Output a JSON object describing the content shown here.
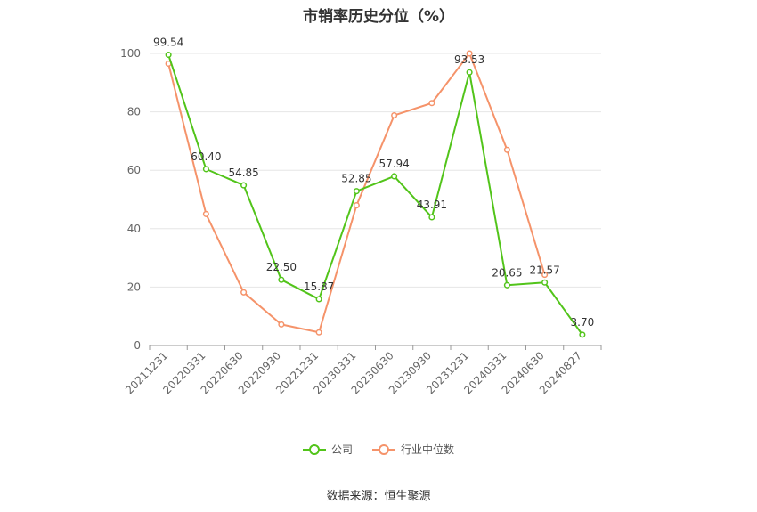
{
  "chart_data": {
    "type": "line",
    "title": "市销率历史分位（%）",
    "categories": [
      "20211231",
      "20220331",
      "20220630",
      "20220930",
      "20221231",
      "20230331",
      "20230630",
      "20230930",
      "20231231",
      "20240331",
      "20240630",
      "20240827"
    ],
    "ylim": [
      0,
      100
    ],
    "yticks": [
      0,
      20,
      40,
      60,
      80,
      100
    ],
    "grid": true,
    "legend_position": "bottom",
    "series": [
      {
        "name": "公司",
        "color": "#52c41a",
        "values": [
          99.54,
          60.4,
          54.85,
          22.5,
          15.87,
          52.85,
          57.94,
          43.91,
          93.53,
          20.65,
          21.57,
          3.7
        ],
        "labels": [
          "99.54",
          "60.40",
          "54.85",
          "22.50",
          "15.87",
          "52.85",
          "57.94",
          "43.91",
          "93.53",
          "20.65",
          "21.57",
          "3.70"
        ]
      },
      {
        "name": "行业中位数",
        "color": "#f5936a",
        "values": [
          96.5,
          45.0,
          18.2,
          7.2,
          4.5,
          48.0,
          78.8,
          83.0,
          100.0,
          67.0,
          24.2,
          null
        ]
      }
    ]
  },
  "source": "数据来源：恒生聚源"
}
